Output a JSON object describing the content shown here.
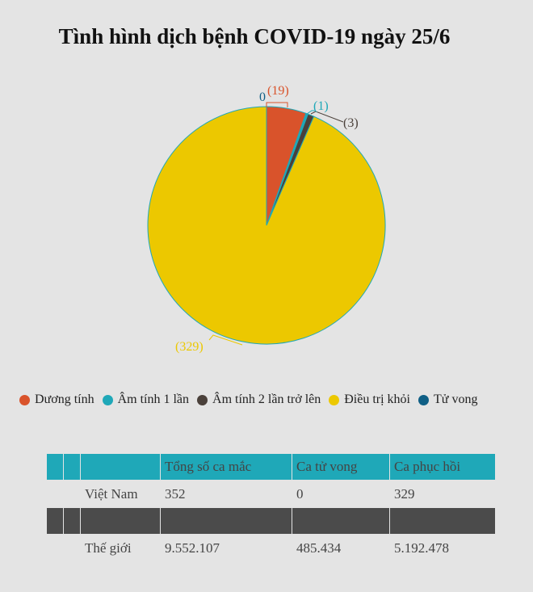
{
  "title": "Tình hình dịch bệnh COVID-19 ngày 25/6",
  "chart_data": {
    "type": "pie",
    "title": "Tình hình dịch bệnh COVID-19 ngày 25/6",
    "slices": [
      {
        "name": "Tử vong",
        "value": 0,
        "label": "0",
        "color": "#0f5f85"
      },
      {
        "name": "Dương tính",
        "value": 19,
        "label": "(19)",
        "color": "#d9532b"
      },
      {
        "name": "Âm tính 1 lần",
        "value": 1,
        "label": "(1)",
        "color": "#1fa8b8"
      },
      {
        "name": "Âm tính 2 lần trở lên",
        "value": 3,
        "label": "(3)",
        "color": "#4a403a"
      },
      {
        "name": "Điều trị khỏi",
        "value": 329,
        "label": "(329)",
        "color": "#ecc800"
      }
    ],
    "legend": [
      "Dương tính",
      "Âm tính 1 lần",
      "Âm tính 2 lần trở lên",
      "Điều trị khỏi",
      "Tử vong"
    ],
    "legend_colors": [
      "#d9532b",
      "#1fa8b8",
      "#4a403a",
      "#ecc800",
      "#0f5f85"
    ],
    "legend_position": "bottom"
  },
  "table": {
    "headers": [
      "",
      "",
      "",
      "Tổng số ca mắc",
      "Ca tử vong",
      "Ca phục hồi"
    ],
    "rows": [
      [
        "",
        "",
        "Việt Nam",
        "352",
        "0",
        "329"
      ],
      [
        "",
        "",
        "Thế giới",
        "9.552.107",
        "485.434",
        "5.192.478"
      ]
    ]
  }
}
